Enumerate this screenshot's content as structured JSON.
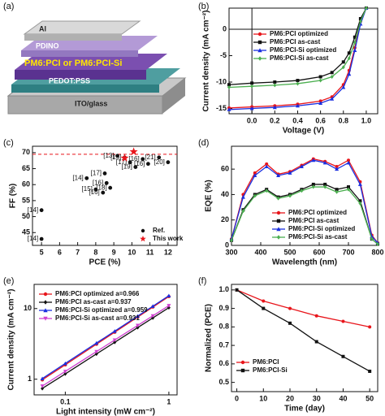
{
  "device": {
    "panel": "(a)",
    "layers": [
      "Al",
      "PDINO",
      "PM6:PCI or PM6:PCI-Si",
      "PEDOT:PSS",
      "ITO/glass"
    ]
  },
  "chart_data": [
    {
      "type": "line",
      "panel": "(b)",
      "xlabel": "Voltage (V)",
      "ylabel": "Current density (mA cm⁻²)",
      "x": [
        -0.2,
        0,
        0.2,
        0.4,
        0.6,
        0.7,
        0.8,
        0.85,
        0.9,
        0.95,
        1.0
      ],
      "xlim": [
        -0.2,
        1.1
      ],
      "xticks": [
        {
          "value": 0,
          "label": "0.0"
        },
        0.2,
        0.4,
        0.6,
        0.8,
        {
          "value": 1,
          "label": "1.0"
        }
      ],
      "ylim": [
        -16,
        4
      ],
      "yticks": [
        -15,
        -10,
        -5,
        0
      ],
      "zero_lines": true,
      "legend": "upper left",
      "series": [
        {
          "name": "PM6:PCI optimized",
          "color": "#e8151b",
          "marker": "circle",
          "values": [
            -14.9,
            -14.7,
            -14.5,
            -14.2,
            -13.6,
            -12.8,
            -10.5,
            -7.8,
            -3.5,
            1.5,
            4
          ]
        },
        {
          "name": "PM6:PCI as-cast",
          "color": "#111111",
          "marker": "square",
          "values": [
            -10.5,
            -10.2,
            -10.0,
            -9.7,
            -9.0,
            -8.2,
            -6.2,
            -4.5,
            -1.5,
            2,
            4
          ]
        },
        {
          "name": "PM6:PCI-Si optimized",
          "color": "#1a2fe0",
          "marker": "triangle",
          "values": [
            -15.2,
            -15.0,
            -14.8,
            -14.5,
            -14.0,
            -13.2,
            -11.0,
            -8.5,
            -4.0,
            1,
            4
          ]
        },
        {
          "name": "PM6:PCI-Si as-cast",
          "color": "#4caf50",
          "marker": "diamond",
          "values": [
            -11.0,
            -10.8,
            -10.6,
            -10.3,
            -9.7,
            -9.0,
            -7.2,
            -5.5,
            -2.5,
            1.5,
            4
          ]
        }
      ]
    },
    {
      "type": "scatter",
      "panel": "(c)",
      "xlabel": "PCE (%)",
      "ylabel": "FF (%)",
      "xlim": [
        4.5,
        12.5
      ],
      "xticks": [
        5,
        6,
        7,
        8,
        9,
        10,
        11,
        12
      ],
      "ylim": [
        41,
        72
      ],
      "yticks": [
        45,
        50,
        55,
        60,
        65,
        70
      ],
      "hline": 69.5,
      "hline_color": "#e8151b",
      "legend": "lower right",
      "series": [
        {
          "name": "Ref.",
          "color": "#111111",
          "marker": "circle",
          "x": [
            5.0,
            5.0,
            7.5,
            8.0,
            8.4,
            8.5,
            8.6,
            8.8,
            9.2,
            9.6,
            9.9,
            10.2,
            10.6,
            10.9,
            11.5,
            12.0
          ],
          "values": [
            52,
            43,
            62,
            58.5,
            57.5,
            63.5,
            60.5,
            59,
            69,
            68.5,
            67,
            65.5,
            68,
            66.5,
            68.5,
            67
          ],
          "point_labels": [
            "[14]",
            "[14]",
            "[14]",
            "[15]",
            "[16]",
            "[17]",
            "[16]",
            "[18]",
            "[13]",
            "[15]",
            "[17]",
            "[19]",
            "[16]",
            "[16]",
            "[21]",
            "[20]"
          ]
        },
        {
          "name": "This work",
          "color": "#e8151b",
          "marker": "star",
          "x": [
            10.1,
            9.6
          ],
          "values": [
            70.3,
            68.3
          ]
        }
      ]
    },
    {
      "type": "line",
      "panel": "(d)",
      "xlabel": "Wavelength (nm)",
      "ylabel": "EQE (%)",
      "x": [
        300,
        340,
        380,
        420,
        460,
        500,
        540,
        580,
        620,
        660,
        700,
        740,
        780,
        800
      ],
      "xlim": [
        300,
        800
      ],
      "xticks": [
        300,
        400,
        500,
        600,
        700,
        800
      ],
      "ylim": [
        0,
        78
      ],
      "yticks": [
        0,
        20,
        40,
        60
      ],
      "legend": "lower center",
      "series": [
        {
          "name": "PM6:PCI optimized",
          "color": "#e8151b",
          "marker": "circle",
          "values": [
            5,
            40,
            57,
            64,
            56,
            58,
            63,
            68,
            66,
            62,
            67,
            50,
            8,
            2
          ]
        },
        {
          "name": "PM6:PCI as-cast",
          "color": "#111111",
          "marker": "square",
          "values": [
            4,
            28,
            40,
            44,
            38,
            40,
            44,
            48,
            48,
            44,
            46,
            35,
            5,
            1
          ]
        },
        {
          "name": "PM6:PCI-Si optimized",
          "color": "#1a2fe0",
          "marker": "triangle",
          "values": [
            5,
            38,
            55,
            62,
            55,
            57,
            62,
            67,
            65,
            60,
            65,
            48,
            7,
            2
          ]
        },
        {
          "name": "PM6:PCI-Si as-cast",
          "color": "#4caf50",
          "marker": "diamond",
          "values": [
            4,
            27,
            39,
            43,
            37,
            39,
            43,
            46,
            46,
            42,
            44,
            33,
            5,
            1
          ]
        }
      ]
    },
    {
      "type": "line",
      "panel": "(e)",
      "xlabel": "Light intensity (mW cm⁻²)",
      "ylabel": "Current density (mA cm⁻²)",
      "xscale": "log",
      "yscale": "log",
      "x": [
        0.06,
        0.1,
        0.2,
        0.3,
        0.5,
        0.7,
        1
      ],
      "xlim": [
        0.05,
        1.2
      ],
      "xticks": [
        0.1,
        1
      ],
      "ylim": [
        0.6,
        22
      ],
      "yticks": [
        1,
        10
      ],
      "legend": "upper left",
      "series": [
        {
          "name": "PM6:PCI optimized a=0.966",
          "color": "#e8151b",
          "marker": "circle",
          "values": [
            0.98,
            1.6,
            3.13,
            4.63,
            7.58,
            10.5,
            14.8
          ]
        },
        {
          "name": "PM6:PCI as-cast a=0.937",
          "color": "#111111",
          "marker": "diamond",
          "values": [
            0.74,
            1.19,
            2.28,
            3.33,
            5.38,
            7.37,
            10.3
          ]
        },
        {
          "name": "PM6:PCI-Si optimized a=0.959",
          "color": "#1a2fe0",
          "marker": "triangle",
          "values": [
            1.02,
            1.67,
            3.25,
            4.79,
            7.81,
            10.8,
            15.2
          ]
        },
        {
          "name": "PM6:PCI-Si as-cast a=0.931",
          "color": "#d040d0",
          "marker": "triangle-down",
          "values": [
            0.8,
            1.29,
            2.46,
            3.59,
            5.77,
            7.89,
            11.0
          ]
        }
      ]
    },
    {
      "type": "line",
      "panel": "(f)",
      "xlabel": "Time (day)",
      "ylabel": "Normalized (PCE)",
      "x": [
        0,
        10,
        20,
        30,
        40,
        50
      ],
      "xlim": [
        -2,
        53
      ],
      "xticks": [
        0,
        10,
        20,
        30,
        40,
        50
      ],
      "ylim": [
        0.45,
        1.03
      ],
      "yticks": [
        0.5,
        0.6,
        0.7,
        0.8,
        0.9,
        {
          "value": 1,
          "label": "1.0"
        }
      ],
      "legend": "lower left",
      "series": [
        {
          "name": "PM6:PCI",
          "color": "#e8151b",
          "marker": "circle",
          "values": [
            1.0,
            0.94,
            0.9,
            0.86,
            0.83,
            0.8
          ]
        },
        {
          "name": "PM6:PCI-Si",
          "color": "#111111",
          "marker": "square",
          "values": [
            1.0,
            0.9,
            0.82,
            0.72,
            0.64,
            0.56
          ]
        }
      ]
    }
  ]
}
